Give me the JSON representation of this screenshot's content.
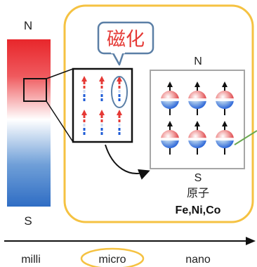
{
  "magnet": {
    "north_label": "N",
    "south_label": "S"
  },
  "callout": {
    "label": "磁化"
  },
  "atom_panel": {
    "north_label": "N",
    "south_label": "S",
    "atom_label": "原子",
    "elements_label": "Fe,Ni,Co"
  },
  "scale": {
    "labels": [
      "milli",
      "micro",
      "nano"
    ],
    "highlighted": "micro"
  },
  "colors": {
    "frame": "#f5c242",
    "callout_border": "#5b7fa6",
    "callout_text": "#e53935",
    "spin_red": "#e53935",
    "spin_blue": "#1e5bd6",
    "atom_box_border": "#a6a6a6",
    "connector_green": "#6aa84f"
  }
}
